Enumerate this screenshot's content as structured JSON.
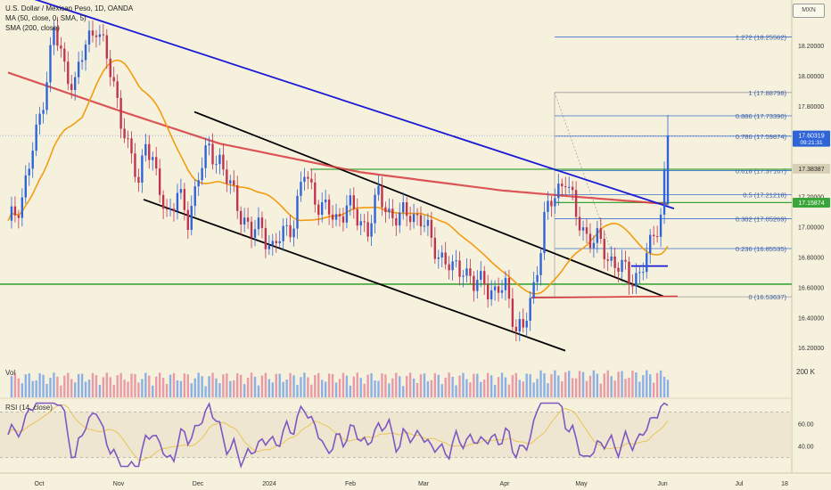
{
  "title": "U.S. Dollar / Mexican Peso, 1D, OANDA",
  "indicators": {
    "ma": "MA (50, close, 0, SMA, 5)",
    "sma": "SMA (200, close)",
    "vol": "Vol",
    "vol_axis": "200 K",
    "rsi": "RSI (14, close)"
  },
  "currency_badge": "MXN",
  "colors": {
    "background": "#f6f1dd",
    "up": "#2f63d8",
    "down": "#c2334d",
    "ma50": "#f39c12",
    "sma200": "#d63a3e",
    "trend_blue": "#1a1ad6",
    "support_green": "#3aa53a",
    "channel": "#000000",
    "fib": "#3b6fd0",
    "rsi": "#7e57c2"
  },
  "chart_data": {
    "type": "candlestick",
    "symbol": "USDMXN",
    "timeframe": "1D",
    "ylim": [
      16.16,
      18.5
    ],
    "y_ticks": [
      18.4,
      18.2,
      18.0,
      17.8,
      17.6,
      17.4,
      17.2,
      17.0,
      16.8,
      16.6,
      16.4,
      16.2
    ],
    "y_tick_labels": [
      "18.40000",
      "18.20000",
      "18.00000",
      "17.80000",
      "17.60000",
      "17.40000",
      "17.20000",
      "17.00000",
      "16.80000",
      "16.60000",
      "16.40000",
      "16.20000"
    ],
    "x_labels": [
      "Oct",
      "Nov",
      "Dec",
      "2024",
      "Feb",
      "Mar",
      "Apr",
      "May",
      "Jun",
      "Jul",
      "18"
    ],
    "price_points": [
      {
        "d": 0,
        "p": 17.0
      },
      {
        "d": 4,
        "p": 17.2
      },
      {
        "d": 8,
        "p": 17.6
      },
      {
        "d": 11,
        "p": 18.0
      },
      {
        "d": 13,
        "p": 18.3
      },
      {
        "d": 16,
        "p": 18.05
      },
      {
        "d": 19,
        "p": 17.95
      },
      {
        "d": 22,
        "p": 18.2
      },
      {
        "d": 25,
        "p": 18.35
      },
      {
        "d": 28,
        "p": 18.1
      },
      {
        "d": 31,
        "p": 17.85
      },
      {
        "d": 34,
        "p": 17.5
      },
      {
        "d": 37,
        "p": 17.3
      },
      {
        "d": 39,
        "p": 17.6
      },
      {
        "d": 42,
        "p": 17.3
      },
      {
        "d": 45,
        "p": 17.1
      },
      {
        "d": 48,
        "p": 17.2
      },
      {
        "d": 51,
        "p": 17.05
      },
      {
        "d": 54,
        "p": 17.35
      },
      {
        "d": 57,
        "p": 17.5
      },
      {
        "d": 60,
        "p": 17.45
      },
      {
        "d": 63,
        "p": 17.25
      },
      {
        "d": 66,
        "p": 17.1
      },
      {
        "d": 69,
        "p": 16.95
      },
      {
        "d": 72,
        "p": 17.0
      },
      {
        "d": 75,
        "p": 16.85
      },
      {
        "d": 78,
        "p": 16.95
      },
      {
        "d": 81,
        "p": 17.05
      },
      {
        "d": 84,
        "p": 17.35
      },
      {
        "d": 87,
        "p": 17.2
      },
      {
        "d": 90,
        "p": 17.1
      },
      {
        "d": 93,
        "p": 17.05
      },
      {
        "d": 96,
        "p": 17.15
      },
      {
        "d": 99,
        "p": 17.05
      },
      {
        "d": 102,
        "p": 17.0
      },
      {
        "d": 105,
        "p": 17.2
      },
      {
        "d": 108,
        "p": 17.1
      },
      {
        "d": 111,
        "p": 17.05
      },
      {
        "d": 114,
        "p": 17.1
      },
      {
        "d": 117,
        "p": 17.05
      },
      {
        "d": 120,
        "p": 16.9
      },
      {
        "d": 123,
        "p": 16.8
      },
      {
        "d": 126,
        "p": 16.7
      },
      {
        "d": 129,
        "p": 16.75
      },
      {
        "d": 132,
        "p": 16.6
      },
      {
        "d": 135,
        "p": 16.65
      },
      {
        "d": 138,
        "p": 16.55
      },
      {
        "d": 141,
        "p": 16.6
      },
      {
        "d": 144,
        "p": 16.35
      },
      {
        "d": 146,
        "p": 16.3
      },
      {
        "d": 149,
        "p": 16.6
      },
      {
        "d": 152,
        "p": 17.05
      },
      {
        "d": 155,
        "p": 17.2
      },
      {
        "d": 158,
        "p": 17.35
      },
      {
        "d": 161,
        "p": 17.05
      },
      {
        "d": 164,
        "p": 16.95
      },
      {
        "d": 167,
        "p": 16.9
      },
      {
        "d": 170,
        "p": 16.8
      },
      {
        "d": 173,
        "p": 16.75
      },
      {
        "d": 176,
        "p": 16.65
      },
      {
        "d": 179,
        "p": 16.7
      },
      {
        "d": 182,
        "p": 16.85
      },
      {
        "d": 185,
        "p": 17.1
      },
      {
        "d": 187,
        "p": 17.6
      }
    ],
    "last_candle": {
      "open": 17.15,
      "high": 17.74,
      "low": 17.14,
      "close": 17.60319
    },
    "price_labels": [
      {
        "value": 17.60319,
        "text": "17.60319",
        "subtext": "09:21:31",
        "color": "#2f63d8"
      },
      {
        "value": 17.38387,
        "text": "17.38387",
        "color": "#d8d0b6"
      },
      {
        "value": 17.15874,
        "text": "17.15874",
        "color": "#3aa53a"
      }
    ],
    "fib_levels": [
      {
        "ratio": "1.272",
        "value": 18.25562
      },
      {
        "ratio": "1",
        "value": 17.88798
      },
      {
        "ratio": "0.886",
        "value": 17.7339
      },
      {
        "ratio": "0.786",
        "value": 17.59874
      },
      {
        "ratio": "0.618",
        "value": 17.37167
      },
      {
        "ratio": "0.5",
        "value": 17.21218
      },
      {
        "ratio": "0.382",
        "value": 17.05269
      },
      {
        "ratio": "0.236",
        "value": 16.85535
      },
      {
        "ratio": "0",
        "value": 16.53637
      }
    ],
    "fib_text": [
      "1.272 (18.25562)",
      "1 (17.88798)",
      "0.886 (17.73390)",
      "0.786 (17.59874)",
      "0.618 (17.37167)",
      "0.5 (17.21218)",
      "0.382 (17.05269)",
      "0.236 (16.85535)",
      "0 (16.53637)"
    ],
    "drawings": {
      "blue_trendline": [
        [
          0,
          18.58
        ],
        [
          193,
          17.12
        ]
      ],
      "channel_upper": [
        [
          55,
          17.76
        ],
        [
          195,
          16.54
        ]
      ],
      "channel_lower": [
        [
          43,
          17.18
        ],
        [
          168,
          16.18
        ]
      ],
      "green_support": 16.62,
      "green_resistance": [
        [
          0,
          17.38
        ],
        [
          190,
          17.38
        ]
      ],
      "green_short": [
        [
          155,
          17.16
        ],
        [
          195,
          17.16
        ]
      ],
      "red_short": [
        [
          160,
          16.53
        ],
        [
          200,
          16.54
        ]
      ],
      "blue_short": [
        [
          180,
          16.74
        ],
        [
          191,
          16.74
        ]
      ]
    },
    "volume_ylim": [
      0,
      260000
    ],
    "rsi_ylim": [
      20,
      80
    ],
    "rsi_ticks": [
      60.0,
      40.0
    ],
    "rsi_tick_labels": [
      "60.00",
      "40.00"
    ],
    "rsi_band": [
      30,
      70
    ]
  }
}
